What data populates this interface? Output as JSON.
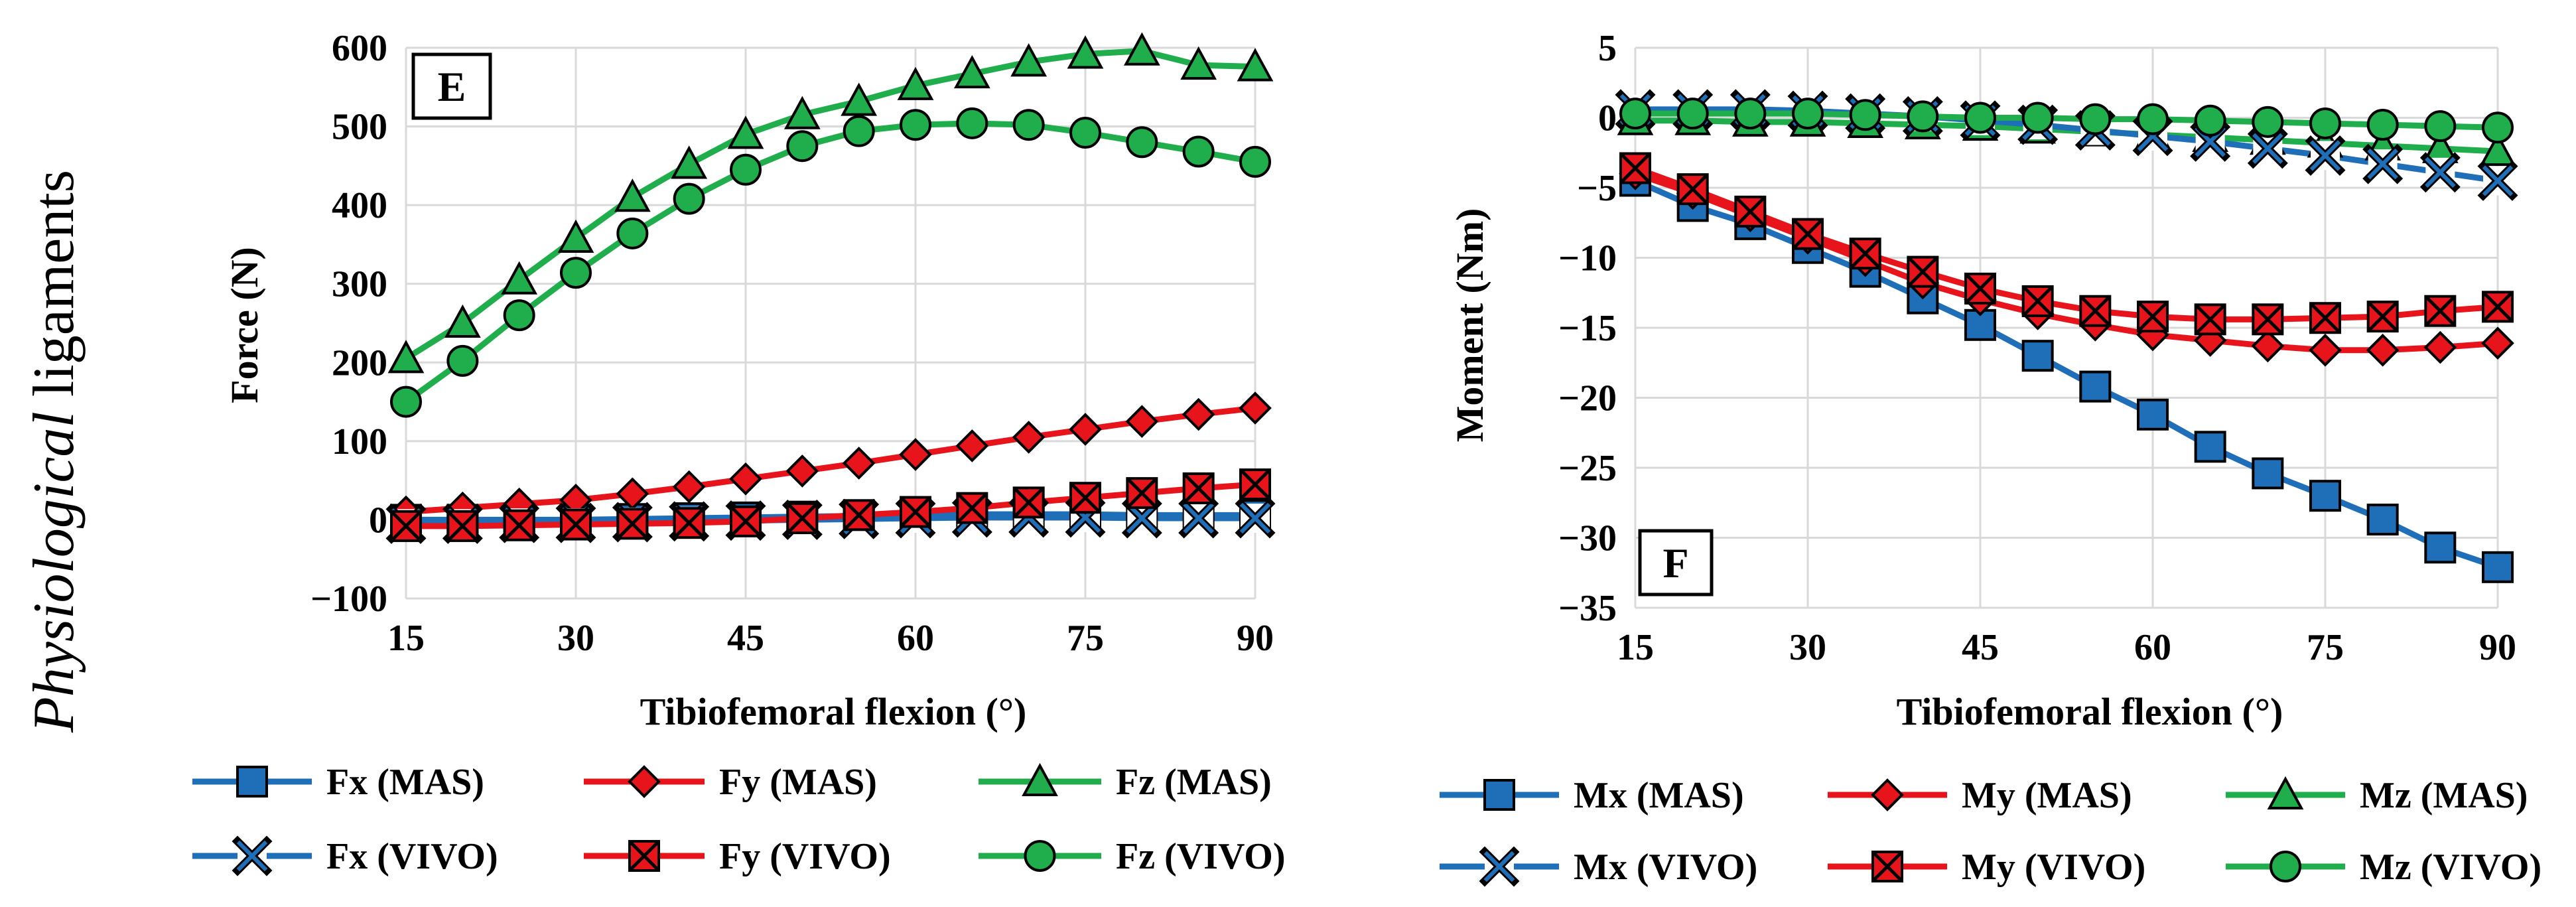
{
  "side_label": {
    "italic": "Physiological",
    "rest": " ligaments"
  },
  "chart_data": [
    {
      "type": "line",
      "panel": "E",
      "xlabel": "Tibiofemoral flexion (°)",
      "ylabel": "Force (N)",
      "xlim": [
        15,
        90
      ],
      "ylim": [
        -100,
        600
      ],
      "xticks": [
        15,
        30,
        45,
        60,
        75,
        90
      ],
      "xtick_labels": [
        "15",
        "30",
        "45",
        "60",
        "75",
        "90"
      ],
      "yticks": [
        -100,
        0,
        100,
        200,
        300,
        400,
        500,
        600
      ],
      "ytick_labels": [
        "−100",
        "0",
        "100",
        "200",
        "300",
        "400",
        "500",
        "600"
      ],
      "x": [
        15,
        20,
        25,
        30,
        35,
        40,
        45,
        50,
        55,
        60,
        65,
        70,
        75,
        80,
        85,
        90
      ],
      "series": [
        {
          "name": "Fx (MAS)",
          "color": "#1f6fb8",
          "marker": "square",
          "values": [
            0,
            0,
            0,
            0,
            1,
            2,
            3,
            4,
            5,
            6,
            7,
            7,
            7,
            6,
            6,
            6
          ]
        },
        {
          "name": "Fy (MAS)",
          "color": "#e8141c",
          "marker": "diamond",
          "values": [
            10,
            15,
            20,
            25,
            33,
            42,
            52,
            62,
            72,
            83,
            94,
            105,
            115,
            125,
            134,
            142
          ]
        },
        {
          "name": "Fz (MAS)",
          "color": "#1fae4b",
          "marker": "triangle",
          "values": [
            205,
            250,
            305,
            358,
            410,
            452,
            490,
            515,
            532,
            552,
            567,
            582,
            592,
            596,
            578,
            576
          ]
        },
        {
          "name": "Fx (VIVO)",
          "color": "#1f6fb8",
          "marker": "x",
          "values": [
            -5,
            -5,
            -4,
            -4,
            -3,
            -2,
            -1,
            0,
            1,
            2,
            3,
            3,
            3,
            2,
            2,
            2
          ]
        },
        {
          "name": "Fy (VIVO)",
          "color": "#e8141c",
          "marker": "starx",
          "values": [
            -8,
            -8,
            -7,
            -6,
            -5,
            -4,
            -2,
            2,
            6,
            10,
            15,
            22,
            28,
            34,
            40,
            45
          ]
        },
        {
          "name": "Fz (VIVO)",
          "color": "#1fae4b",
          "marker": "circle",
          "values": [
            150,
            202,
            260,
            314,
            364,
            408,
            445,
            475,
            494,
            502,
            504,
            502,
            492,
            480,
            468,
            455
          ]
        }
      ]
    },
    {
      "type": "line",
      "panel": "F",
      "xlabel": "Tibiofemoral flexion (°)",
      "ylabel": "Moment (Nm)",
      "xlim": [
        15,
        90
      ],
      "ylim": [
        -35,
        5
      ],
      "xticks": [
        15,
        30,
        45,
        60,
        75,
        90
      ],
      "xtick_labels": [
        "15",
        "30",
        "45",
        "60",
        "75",
        "90"
      ],
      "yticks": [
        -35,
        -30,
        -25,
        -20,
        -15,
        -10,
        -5,
        0,
        5
      ],
      "ytick_labels": [
        "−35",
        "−30",
        "−25",
        "−20",
        "−15",
        "−10",
        "−5",
        "0",
        "5"
      ],
      "x": [
        15,
        20,
        25,
        30,
        35,
        40,
        45,
        50,
        55,
        60,
        65,
        70,
        75,
        80,
        85,
        90
      ],
      "series": [
        {
          "name": "Mx (MAS)",
          "color": "#1f6fb8",
          "marker": "square",
          "values": [
            -4.5,
            -6.3,
            -7.6,
            -9.3,
            -11.0,
            -12.9,
            -14.8,
            -17.0,
            -19.2,
            -21.2,
            -23.5,
            -25.4,
            -27.0,
            -28.7,
            -30.7,
            -32.1
          ]
        },
        {
          "name": "My (MAS)",
          "color": "#e8141c",
          "marker": "diamond",
          "values": [
            -4.0,
            -5.4,
            -7.0,
            -8.6,
            -10.2,
            -11.8,
            -13.0,
            -14.0,
            -14.8,
            -15.5,
            -15.9,
            -16.3,
            -16.6,
            -16.6,
            -16.4,
            -16.1
          ]
        },
        {
          "name": "Mz (MAS)",
          "color": "#1fae4b",
          "marker": "triangle",
          "values": [
            -0.2,
            -0.2,
            -0.3,
            -0.3,
            -0.4,
            -0.5,
            -0.6,
            -0.8,
            -1.0,
            -1.2,
            -1.4,
            -1.6,
            -1.8,
            -2.0,
            -2.2,
            -2.4
          ]
        },
        {
          "name": "Mx (VIVO)",
          "color": "#1f6fb8",
          "marker": "x",
          "values": [
            0.6,
            0.6,
            0.6,
            0.5,
            0.3,
            0.1,
            -0.2,
            -0.5,
            -0.9,
            -1.3,
            -1.7,
            -2.2,
            -2.7,
            -3.3,
            -3.9,
            -4.5
          ]
        },
        {
          "name": "My (VIVO)",
          "color": "#e8141c",
          "marker": "starx",
          "values": [
            -3.6,
            -5.1,
            -6.7,
            -8.3,
            -9.7,
            -11.0,
            -12.2,
            -13.1,
            -13.8,
            -14.2,
            -14.4,
            -14.4,
            -14.3,
            -14.2,
            -13.8,
            -13.5
          ]
        },
        {
          "name": "Mz (VIVO)",
          "color": "#1fae4b",
          "marker": "circle",
          "values": [
            0.3,
            0.3,
            0.3,
            0.3,
            0.2,
            0.1,
            0.0,
            0.0,
            -0.1,
            -0.1,
            -0.2,
            -0.3,
            -0.4,
            -0.5,
            -0.6,
            -0.7
          ]
        }
      ]
    }
  ]
}
